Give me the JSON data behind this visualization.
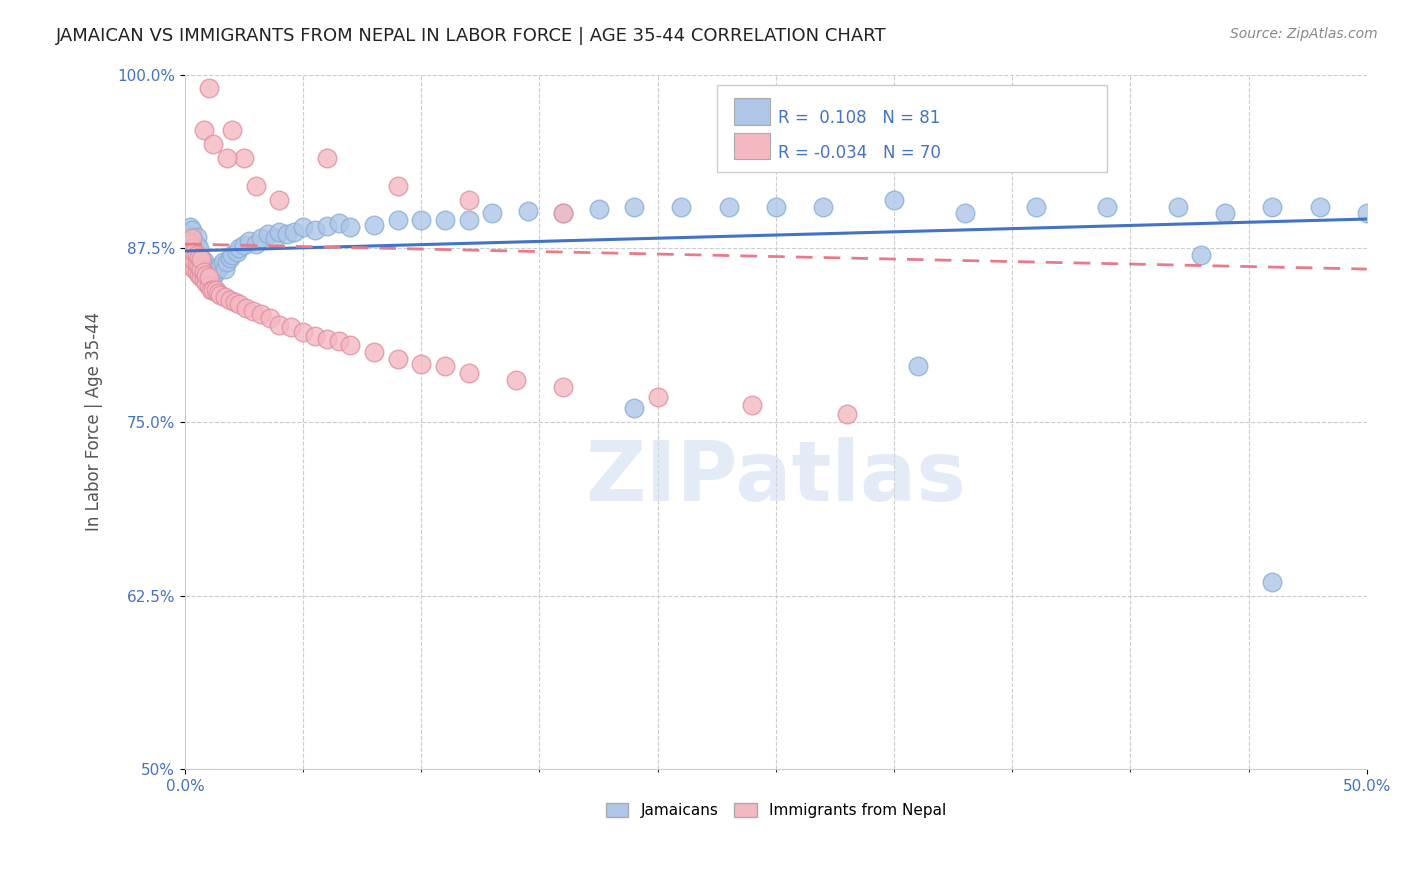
{
  "title": "JAMAICAN VS IMMIGRANTS FROM NEPAL IN LABOR FORCE | AGE 35-44 CORRELATION CHART",
  "source_text": "Source: ZipAtlas.com",
  "ylabel": "In Labor Force | Age 35-44",
  "xlim": [
    0.0,
    0.5
  ],
  "ylim": [
    0.5,
    1.0
  ],
  "ytick_values": [
    0.5,
    0.625,
    0.75,
    0.875,
    1.0
  ],
  "ytick_labels": [
    "50%",
    "62.5%",
    "75.0%",
    "87.5%",
    "100.0%"
  ],
  "blue_R": 0.108,
  "blue_N": 81,
  "pink_R": -0.034,
  "pink_N": 70,
  "blue_color": "#aec6e8",
  "pink_color": "#f4b8c1",
  "blue_line_color": "#4472c4",
  "pink_line_color": "#e87a8a",
  "watermark": "ZIPatlas",
  "legend_label_blue": "Jamaicans",
  "legend_label_pink": "Immigrants from Nepal",
  "background_color": "#ffffff",
  "grid_color": "#cccccc",
  "title_color": "#222222",
  "axis_label_color": "#4472c4",
  "blue_x": [
    0.001,
    0.001,
    0.001,
    0.002,
    0.002,
    0.002,
    0.002,
    0.003,
    0.003,
    0.003,
    0.003,
    0.004,
    0.004,
    0.004,
    0.005,
    0.005,
    0.005,
    0.005,
    0.006,
    0.006,
    0.006,
    0.007,
    0.007,
    0.008,
    0.008,
    0.009,
    0.01,
    0.01,
    0.011,
    0.012,
    0.013,
    0.014,
    0.015,
    0.016,
    0.017,
    0.018,
    0.019,
    0.02,
    0.022,
    0.023,
    0.025,
    0.027,
    0.03,
    0.032,
    0.035,
    0.038,
    0.04,
    0.043,
    0.046,
    0.05,
    0.055,
    0.06,
    0.065,
    0.07,
    0.08,
    0.09,
    0.1,
    0.11,
    0.12,
    0.13,
    0.145,
    0.16,
    0.175,
    0.19,
    0.21,
    0.23,
    0.25,
    0.27,
    0.3,
    0.33,
    0.36,
    0.39,
    0.42,
    0.44,
    0.46,
    0.48,
    0.5,
    0.19,
    0.31,
    0.43,
    0.46
  ],
  "blue_y": [
    0.875,
    0.88,
    0.885,
    0.872,
    0.878,
    0.884,
    0.89,
    0.87,
    0.876,
    0.882,
    0.888,
    0.868,
    0.874,
    0.88,
    0.865,
    0.871,
    0.877,
    0.883,
    0.863,
    0.869,
    0.875,
    0.862,
    0.868,
    0.86,
    0.866,
    0.858,
    0.855,
    0.861,
    0.856,
    0.854,
    0.858,
    0.86,
    0.862,
    0.865,
    0.86,
    0.865,
    0.868,
    0.87,
    0.872,
    0.875,
    0.877,
    0.88,
    0.878,
    0.882,
    0.885,
    0.882,
    0.887,
    0.885,
    0.887,
    0.89,
    0.888,
    0.891,
    0.893,
    0.89,
    0.892,
    0.895,
    0.895,
    0.895,
    0.895,
    0.9,
    0.902,
    0.9,
    0.903,
    0.905,
    0.905,
    0.905,
    0.905,
    0.905,
    0.91,
    0.9,
    0.905,
    0.905,
    0.905,
    0.9,
    0.905,
    0.905,
    0.9,
    0.76,
    0.79,
    0.87,
    0.635
  ],
  "pink_x": [
    0.001,
    0.001,
    0.001,
    0.002,
    0.002,
    0.002,
    0.003,
    0.003,
    0.003,
    0.003,
    0.004,
    0.004,
    0.004,
    0.005,
    0.005,
    0.005,
    0.006,
    0.006,
    0.006,
    0.007,
    0.007,
    0.007,
    0.008,
    0.008,
    0.009,
    0.009,
    0.01,
    0.01,
    0.011,
    0.012,
    0.013,
    0.014,
    0.015,
    0.017,
    0.019,
    0.021,
    0.023,
    0.026,
    0.029,
    0.032,
    0.036,
    0.04,
    0.045,
    0.05,
    0.055,
    0.06,
    0.065,
    0.07,
    0.08,
    0.09,
    0.1,
    0.11,
    0.12,
    0.14,
    0.16,
    0.2,
    0.24,
    0.28,
    0.01,
    0.02,
    0.025,
    0.03,
    0.04,
    0.06,
    0.09,
    0.12,
    0.16,
    0.008,
    0.012,
    0.018
  ],
  "pink_y": [
    0.87,
    0.875,
    0.88,
    0.865,
    0.872,
    0.878,
    0.862,
    0.868,
    0.875,
    0.882,
    0.86,
    0.866,
    0.872,
    0.858,
    0.864,
    0.87,
    0.856,
    0.862,
    0.869,
    0.854,
    0.86,
    0.867,
    0.852,
    0.858,
    0.85,
    0.856,
    0.848,
    0.854,
    0.845,
    0.845,
    0.845,
    0.843,
    0.841,
    0.84,
    0.838,
    0.836,
    0.835,
    0.832,
    0.83,
    0.828,
    0.825,
    0.82,
    0.818,
    0.815,
    0.812,
    0.81,
    0.808,
    0.805,
    0.8,
    0.795,
    0.792,
    0.79,
    0.785,
    0.78,
    0.775,
    0.768,
    0.762,
    0.756,
    0.99,
    0.96,
    0.94,
    0.92,
    0.91,
    0.94,
    0.92,
    0.91,
    0.9,
    0.96,
    0.95,
    0.94
  ],
  "blue_line_x0": 0.0,
  "blue_line_y0": 0.873,
  "blue_line_x1": 0.5,
  "blue_line_y1": 0.896,
  "pink_line_x0": 0.0,
  "pink_line_y0": 0.878,
  "pink_line_x1": 0.5,
  "pink_line_y1": 0.86
}
